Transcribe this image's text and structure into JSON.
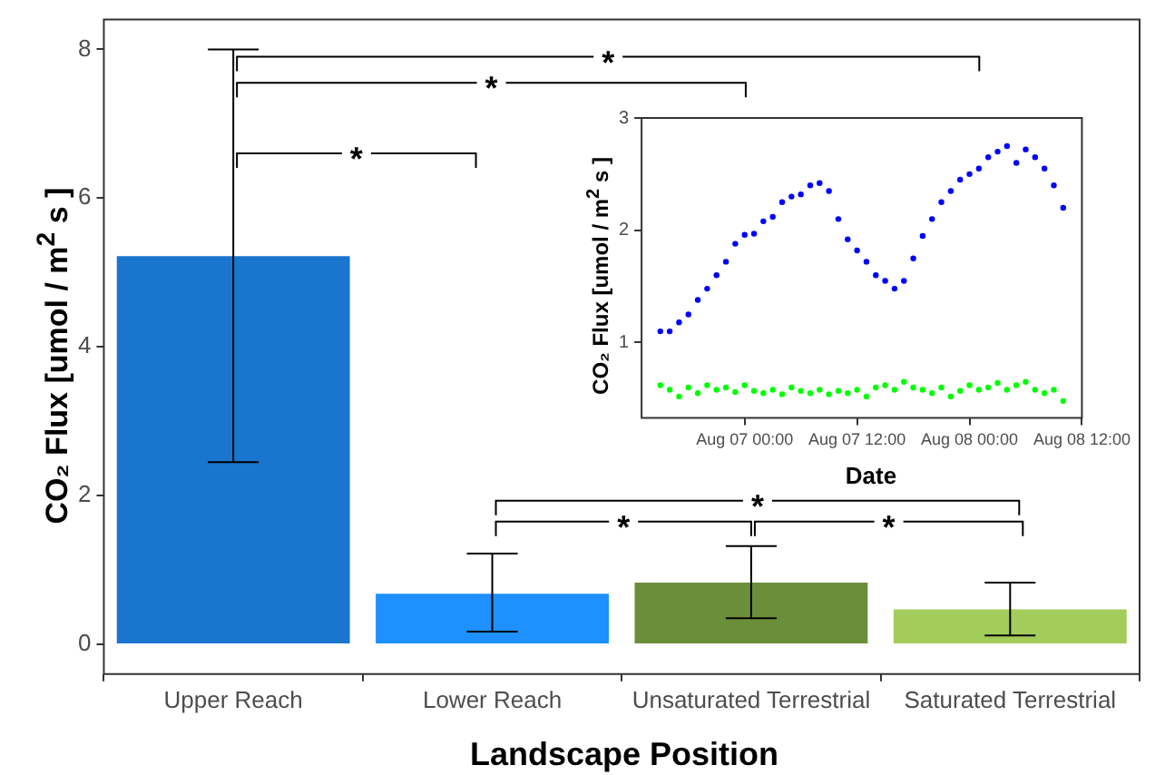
{
  "chart_data": [
    {
      "type": "bar",
      "xlabel": "Landscape Position",
      "ylabel": "CO₂ Flux [umol / m$^{2}$ s ]",
      "categories": [
        "Upper Reach",
        "Lower Reach",
        "Unsaturated Terrestrial",
        "Saturated Terrestrial"
      ],
      "values": [
        5.22,
        0.68,
        0.83,
        0.47
      ],
      "colors": [
        "#1a75cf",
        "#1e90ff",
        "#6b8e3a",
        "#a2cd5a"
      ],
      "errors": [
        [
          2.45,
          8.0
        ],
        [
          0.17,
          1.22
        ],
        [
          0.35,
          1.32
        ],
        [
          0.12,
          0.83
        ]
      ],
      "ylim": [
        -0.4,
        8.4
      ],
      "yticks": [
        0,
        2,
        4,
        6,
        8
      ],
      "grid": false,
      "annotations": [
        "*",
        "*",
        "*",
        "*",
        "*",
        "*"
      ]
    },
    {
      "type": "scatter",
      "xlabel": "Date",
      "ylabel": "CO₂ Flux [umol / m$^{2}$ s ]",
      "marker": "circle",
      "grid": false,
      "x": [
        "--08-06T15:00",
        "--08-06T16:00",
        "--08-06T17:00",
        "--08-06T18:00",
        "--08-06T19:00",
        "--08-06T20:00",
        "--08-06T21:00",
        "--08-06T22:00",
        "--08-06T23:00",
        "--08-07T00:00",
        "--08-07T01:00",
        "--08-07T02:00",
        "--08-07T03:00",
        "--08-07T04:00",
        "--08-07T05:00",
        "--08-07T06:00",
        "--08-07T07:00",
        "--08-07T08:00",
        "--08-07T09:00",
        "--08-07T10:00",
        "--08-07T11:00",
        "--08-07T12:00",
        "--08-07T13:00",
        "--08-07T14:00",
        "--08-07T15:00",
        "--08-07T16:00",
        "--08-07T17:00",
        "--08-07T18:00",
        "--08-07T19:00",
        "--08-07T20:00",
        "--08-07T21:00",
        "--08-07T22:00",
        "--08-07T23:00",
        "--08-08T00:00",
        "--08-08T01:00",
        "--08-08T02:00",
        "--08-08T03:00",
        "--08-08T04:00",
        "--08-08T05:00",
        "--08-08T06:00",
        "--08-08T07:00",
        "--08-08T08:00",
        "--08-08T09:00",
        "--08-08T10:00"
      ],
      "series": [
        {
          "color": "#0000ff",
          "values": [
            1.1,
            1.1,
            1.18,
            1.25,
            1.38,
            1.48,
            1.6,
            1.72,
            1.88,
            1.96,
            1.97,
            2.08,
            2.12,
            2.25,
            2.3,
            2.32,
            2.4,
            2.42,
            2.35,
            2.1,
            1.92,
            1.82,
            1.72,
            1.6,
            1.55,
            1.48,
            1.55,
            1.75,
            1.95,
            2.1,
            2.25,
            2.35,
            2.45,
            2.5,
            2.55,
            2.65,
            2.7,
            2.75,
            2.6,
            2.72,
            2.65,
            2.55,
            2.4,
            2.2
          ]
        },
        {
          "color": "#00ff00",
          "values": [
            0.62,
            0.58,
            0.52,
            0.6,
            0.55,
            0.62,
            0.58,
            0.6,
            0.56,
            0.62,
            0.57,
            0.55,
            0.58,
            0.54,
            0.6,
            0.57,
            0.55,
            0.58,
            0.54,
            0.57,
            0.55,
            0.58,
            0.52,
            0.6,
            0.62,
            0.58,
            0.65,
            0.6,
            0.58,
            0.55,
            0.6,
            0.52,
            0.57,
            0.62,
            0.58,
            0.6,
            0.64,
            0.58,
            0.62,
            0.65,
            0.58,
            0.55,
            0.58,
            0.48
          ]
        }
      ],
      "xlim": [
        "--08-06T13:00",
        "--08-08T12:00"
      ],
      "xticks": [
        {
          "value": "--08-07T00:00",
          "label": "Aug 07 00:00"
        },
        {
          "value": "--08-07T12:00",
          "label": "Aug 07 12:00"
        },
        {
          "value": "--08-08T00:00",
          "label": "Aug 08 00:00"
        },
        {
          "value": "--08-08T12:00",
          "label": "Aug 08 12:00"
        }
      ],
      "ylim": [
        0.33,
        3.0
      ],
      "yticks": [
        1,
        2,
        3
      ]
    }
  ]
}
